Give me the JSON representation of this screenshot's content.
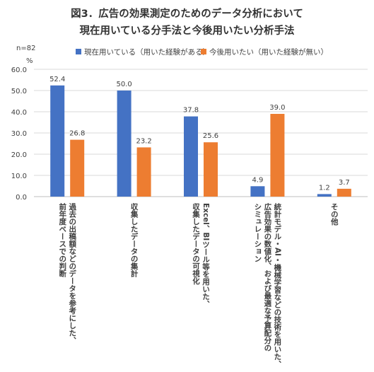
{
  "title": "図3．広告の効果測定のためのデータ分析において",
  "subtitle": "現在用いている分手法と今後用いたい分析手法",
  "sample_note": "n=82",
  "unit": "%",
  "legend": [
    {
      "name": "現在用いている（用いた経験がある）",
      "color": "#4472c4"
    },
    {
      "name": "今後用いたい（用いた経験が無い）",
      "color": "#ed7d31"
    }
  ],
  "category_lines": [
    [
      "過去の出稿額などのデータを参考にした、",
      "前年度ベースでの判断"
    ],
    [
      "収集したデータの集計"
    ],
    [
      "Excel、BIツール等を用いた、",
      "収集したデータの可視化"
    ],
    [
      "統計モデル・AI・機械学習などの技術を用いた、",
      "広告効果の数値化、および最適な予算配分の",
      "シミュレーション"
    ],
    [
      "その他"
    ]
  ],
  "chart_data": {
    "type": "bar",
    "title": "図3．広告の効果測定のためのデータ分析において",
    "subtitle": "現在用いている分手法と今後用いたい分析手法",
    "ylabel": "%",
    "ylim": [
      0,
      60
    ],
    "yticks": [
      "0.0",
      "10.0",
      "20.0",
      "30.0",
      "40.0",
      "50.0",
      "60.0"
    ],
    "grid": true,
    "legend_position": "top",
    "categories": [
      "過去の出稿額などのデータを参考にした、前年度ベースでの判断",
      "収集したデータの集計",
      "Excel、BIツール等を用いた、収集したデータの可視化",
      "統計モデル・AI・機械学習などの技術を用いた、広告効果の数値化、および最適な予算配分のシミュレーション",
      "その他"
    ],
    "series": [
      {
        "name": "現在用いている（用いた経験がある）",
        "color": "#4472c4",
        "values": [
          52.4,
          50.0,
          37.8,
          4.9,
          1.2
        ]
      },
      {
        "name": "今後用いたい（用いた経験が無い）",
        "color": "#ed7d31",
        "values": [
          26.8,
          23.2,
          25.6,
          39.0,
          3.7
        ]
      }
    ]
  }
}
